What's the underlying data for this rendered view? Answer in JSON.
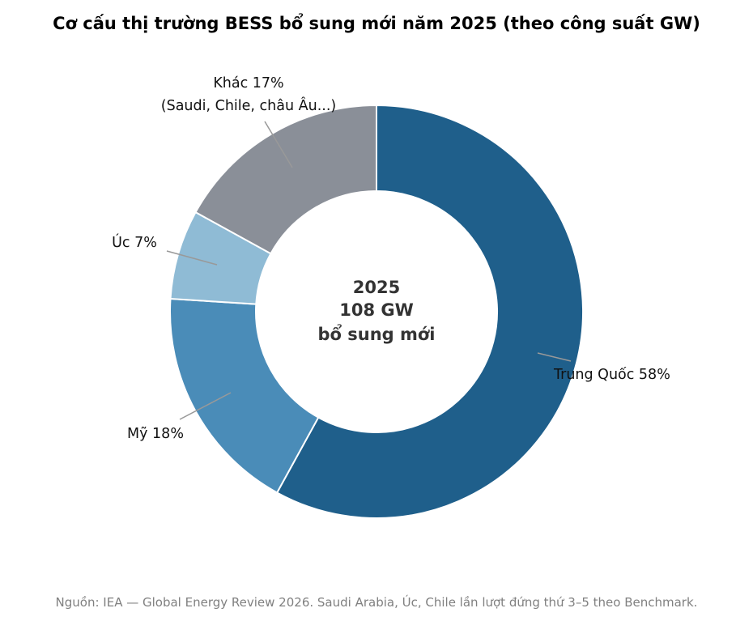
{
  "chart_data": {
    "type": "pie",
    "variant": "donut",
    "title": "Cơ cấu thị trường BESS bổ sung mới năm 2025 (theo công suất GW)",
    "center_label": [
      "2025",
      "108 GW",
      "bổ sung mới"
    ],
    "unit": "%",
    "slices": [
      {
        "label": "Trung Quốc",
        "value": 58,
        "label_text": [
          "Trung Quốc 58%"
        ],
        "color": "#1f5f8b"
      },
      {
        "label": "Mỹ",
        "value": 18,
        "label_text": [
          "Mỹ 18%"
        ],
        "color": "#4a8cb8"
      },
      {
        "label": "Úc",
        "value": 7,
        "label_text": [
          "Úc 7%"
        ],
        "color": "#8fbbd5"
      },
      {
        "label": "Khác",
        "value": 17,
        "label_text": [
          "Khác 17%",
          "(Saudi, Chile, châu Âu...)"
        ],
        "color": "#8a8f98"
      }
    ],
    "start": "top",
    "direction": "clockwise",
    "slice_border_color": "#ffffff"
  },
  "footer": {
    "source": "Nguồn: IEA — Global Energy Review 2026. Saudi Arabia, Úc, Chile lần lượt đứng thứ 3–5 theo Benchmark."
  }
}
